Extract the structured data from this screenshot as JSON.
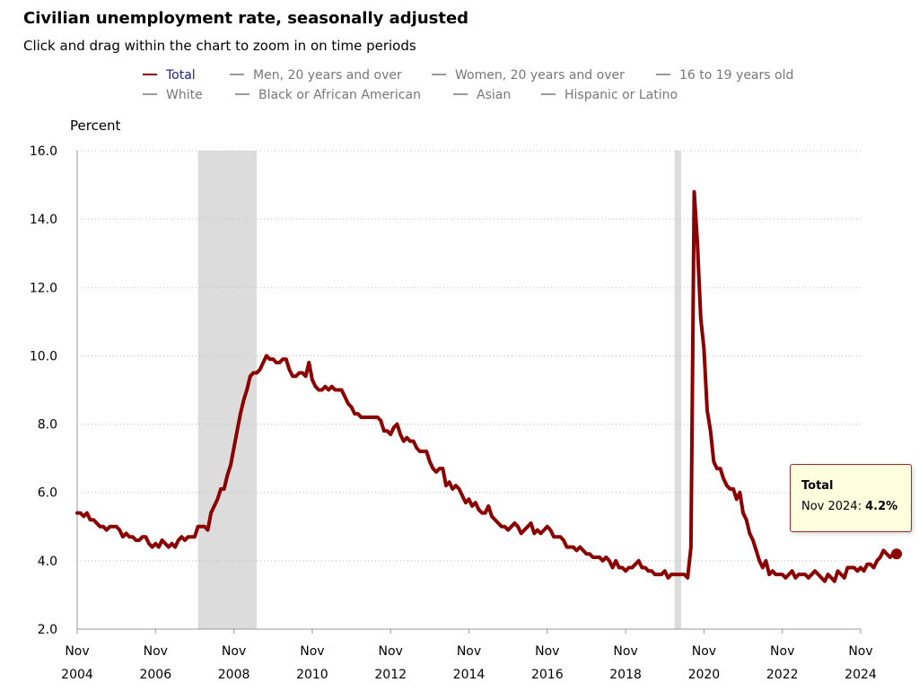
{
  "title": "Civilian unemployment rate, seasonally adjusted",
  "subtitle": "Click and drag within the chart to zoom in on time periods",
  "legend": [
    {
      "label": "Total",
      "active": true
    },
    {
      "label": "Men, 20 years and over",
      "active": false
    },
    {
      "label": "Women, 20 years and over",
      "active": false
    },
    {
      "label": "16 to 19 years old",
      "active": false
    },
    {
      "label": "White",
      "active": false
    },
    {
      "label": "Black or African American",
      "active": false
    },
    {
      "label": "Asian",
      "active": false
    },
    {
      "label": "Hispanic or Latino",
      "active": false
    }
  ],
  "tooltip": {
    "series": "Total",
    "label": "Nov 2024:",
    "value": "4.2%"
  },
  "colors": {
    "line": "#8b0000",
    "recession": "#dcdcdc",
    "grid": "#bbbbbb",
    "axis": "#999999"
  },
  "chart_data": {
    "type": "line",
    "title": "Civilian unemployment rate, seasonally adjusted",
    "ylabel": "Percent",
    "xlabel": "",
    "ylim": [
      2.0,
      16.0
    ],
    "yticks": [
      "2.0",
      "4.0",
      "6.0",
      "8.0",
      "10.0",
      "12.0",
      "14.0",
      "16.0"
    ],
    "xticks": [
      {
        "month": "Nov",
        "year": "2004"
      },
      {
        "month": "Nov",
        "year": "2006"
      },
      {
        "month": "Nov",
        "year": "2008"
      },
      {
        "month": "Nov",
        "year": "2010"
      },
      {
        "month": "Nov",
        "year": "2012"
      },
      {
        "month": "Nov",
        "year": "2014"
      },
      {
        "month": "Nov",
        "year": "2016"
      },
      {
        "month": "Nov",
        "year": "2018"
      },
      {
        "month": "Nov",
        "year": "2020"
      },
      {
        "month": "Nov",
        "year": "2022"
      },
      {
        "month": "Nov",
        "year": "2024"
      }
    ],
    "grid": true,
    "recessions": [
      {
        "start": "2007-12",
        "end": "2009-06"
      },
      {
        "start": "2020-02",
        "end": "2020-04"
      }
    ],
    "series": [
      {
        "name": "Total",
        "start": "2004-11",
        "frequency": "monthly",
        "values": [
          5.4,
          5.4,
          5.3,
          5.4,
          5.2,
          5.2,
          5.1,
          5.0,
          5.0,
          4.9,
          5.0,
          5.0,
          5.0,
          4.9,
          4.7,
          4.8,
          4.7,
          4.7,
          4.6,
          4.6,
          4.7,
          4.7,
          4.5,
          4.4,
          4.5,
          4.4,
          4.6,
          4.5,
          4.4,
          4.5,
          4.4,
          4.6,
          4.7,
          4.6,
          4.7,
          4.7,
          4.7,
          5.0,
          5.0,
          5.0,
          4.9,
          5.4,
          5.6,
          5.8,
          6.1,
          6.1,
          6.5,
          6.8,
          7.3,
          7.8,
          8.3,
          8.7,
          9.0,
          9.4,
          9.5,
          9.5,
          9.6,
          9.8,
          10.0,
          9.9,
          9.9,
          9.8,
          9.8,
          9.9,
          9.9,
          9.6,
          9.4,
          9.4,
          9.5,
          9.5,
          9.4,
          9.8,
          9.3,
          9.1,
          9.0,
          9.0,
          9.1,
          9.0,
          9.1,
          9.0,
          9.0,
          9.0,
          8.8,
          8.6,
          8.5,
          8.3,
          8.3,
          8.2,
          8.2,
          8.2,
          8.2,
          8.2,
          8.2,
          8.1,
          7.8,
          7.8,
          7.7,
          7.9,
          8.0,
          7.7,
          7.5,
          7.6,
          7.5,
          7.5,
          7.3,
          7.2,
          7.2,
          7.2,
          6.9,
          6.7,
          6.6,
          6.7,
          6.7,
          6.2,
          6.3,
          6.1,
          6.2,
          6.1,
          5.9,
          5.7,
          5.8,
          5.6,
          5.7,
          5.5,
          5.4,
          5.4,
          5.6,
          5.3,
          5.2,
          5.1,
          5.0,
          5.0,
          4.9,
          5.0,
          5.1,
          5.0,
          4.8,
          4.9,
          5.0,
          5.1,
          4.8,
          4.9,
          4.8,
          4.9,
          5.0,
          4.9,
          4.7,
          4.7,
          4.7,
          4.6,
          4.4,
          4.4,
          4.4,
          4.3,
          4.4,
          4.3,
          4.2,
          4.2,
          4.1,
          4.1,
          4.1,
          4.0,
          4.1,
          4.0,
          3.8,
          4.0,
          3.8,
          3.8,
          3.7,
          3.8,
          3.8,
          3.9,
          4.0,
          3.8,
          3.8,
          3.7,
          3.7,
          3.6,
          3.6,
          3.6,
          3.7,
          3.5,
          3.6,
          3.6,
          3.6,
          3.6,
          3.6,
          3.5,
          4.4,
          14.8,
          13.3,
          11.1,
          10.2,
          8.4,
          7.8,
          6.9,
          6.7,
          6.7,
          6.4,
          6.2,
          6.1,
          6.1,
          5.8,
          6.0,
          5.4,
          5.2,
          4.8,
          4.6,
          4.3,
          4.0,
          3.8,
          4.0,
          3.6,
          3.7,
          3.6,
          3.6,
          3.6,
          3.5,
          3.6,
          3.7,
          3.5,
          3.6,
          3.6,
          3.6,
          3.5,
          3.6,
          3.7,
          3.6,
          3.5,
          3.4,
          3.6,
          3.5,
          3.4,
          3.7,
          3.6,
          3.5,
          3.8,
          3.8,
          3.8,
          3.7,
          3.8,
          3.7,
          3.9,
          3.9,
          3.8,
          4.0,
          4.1,
          4.3,
          4.2,
          4.1,
          4.2,
          4.2
        ],
        "last_point": {
          "label": "Nov 2024",
          "value": 4.2
        }
      }
    ]
  }
}
